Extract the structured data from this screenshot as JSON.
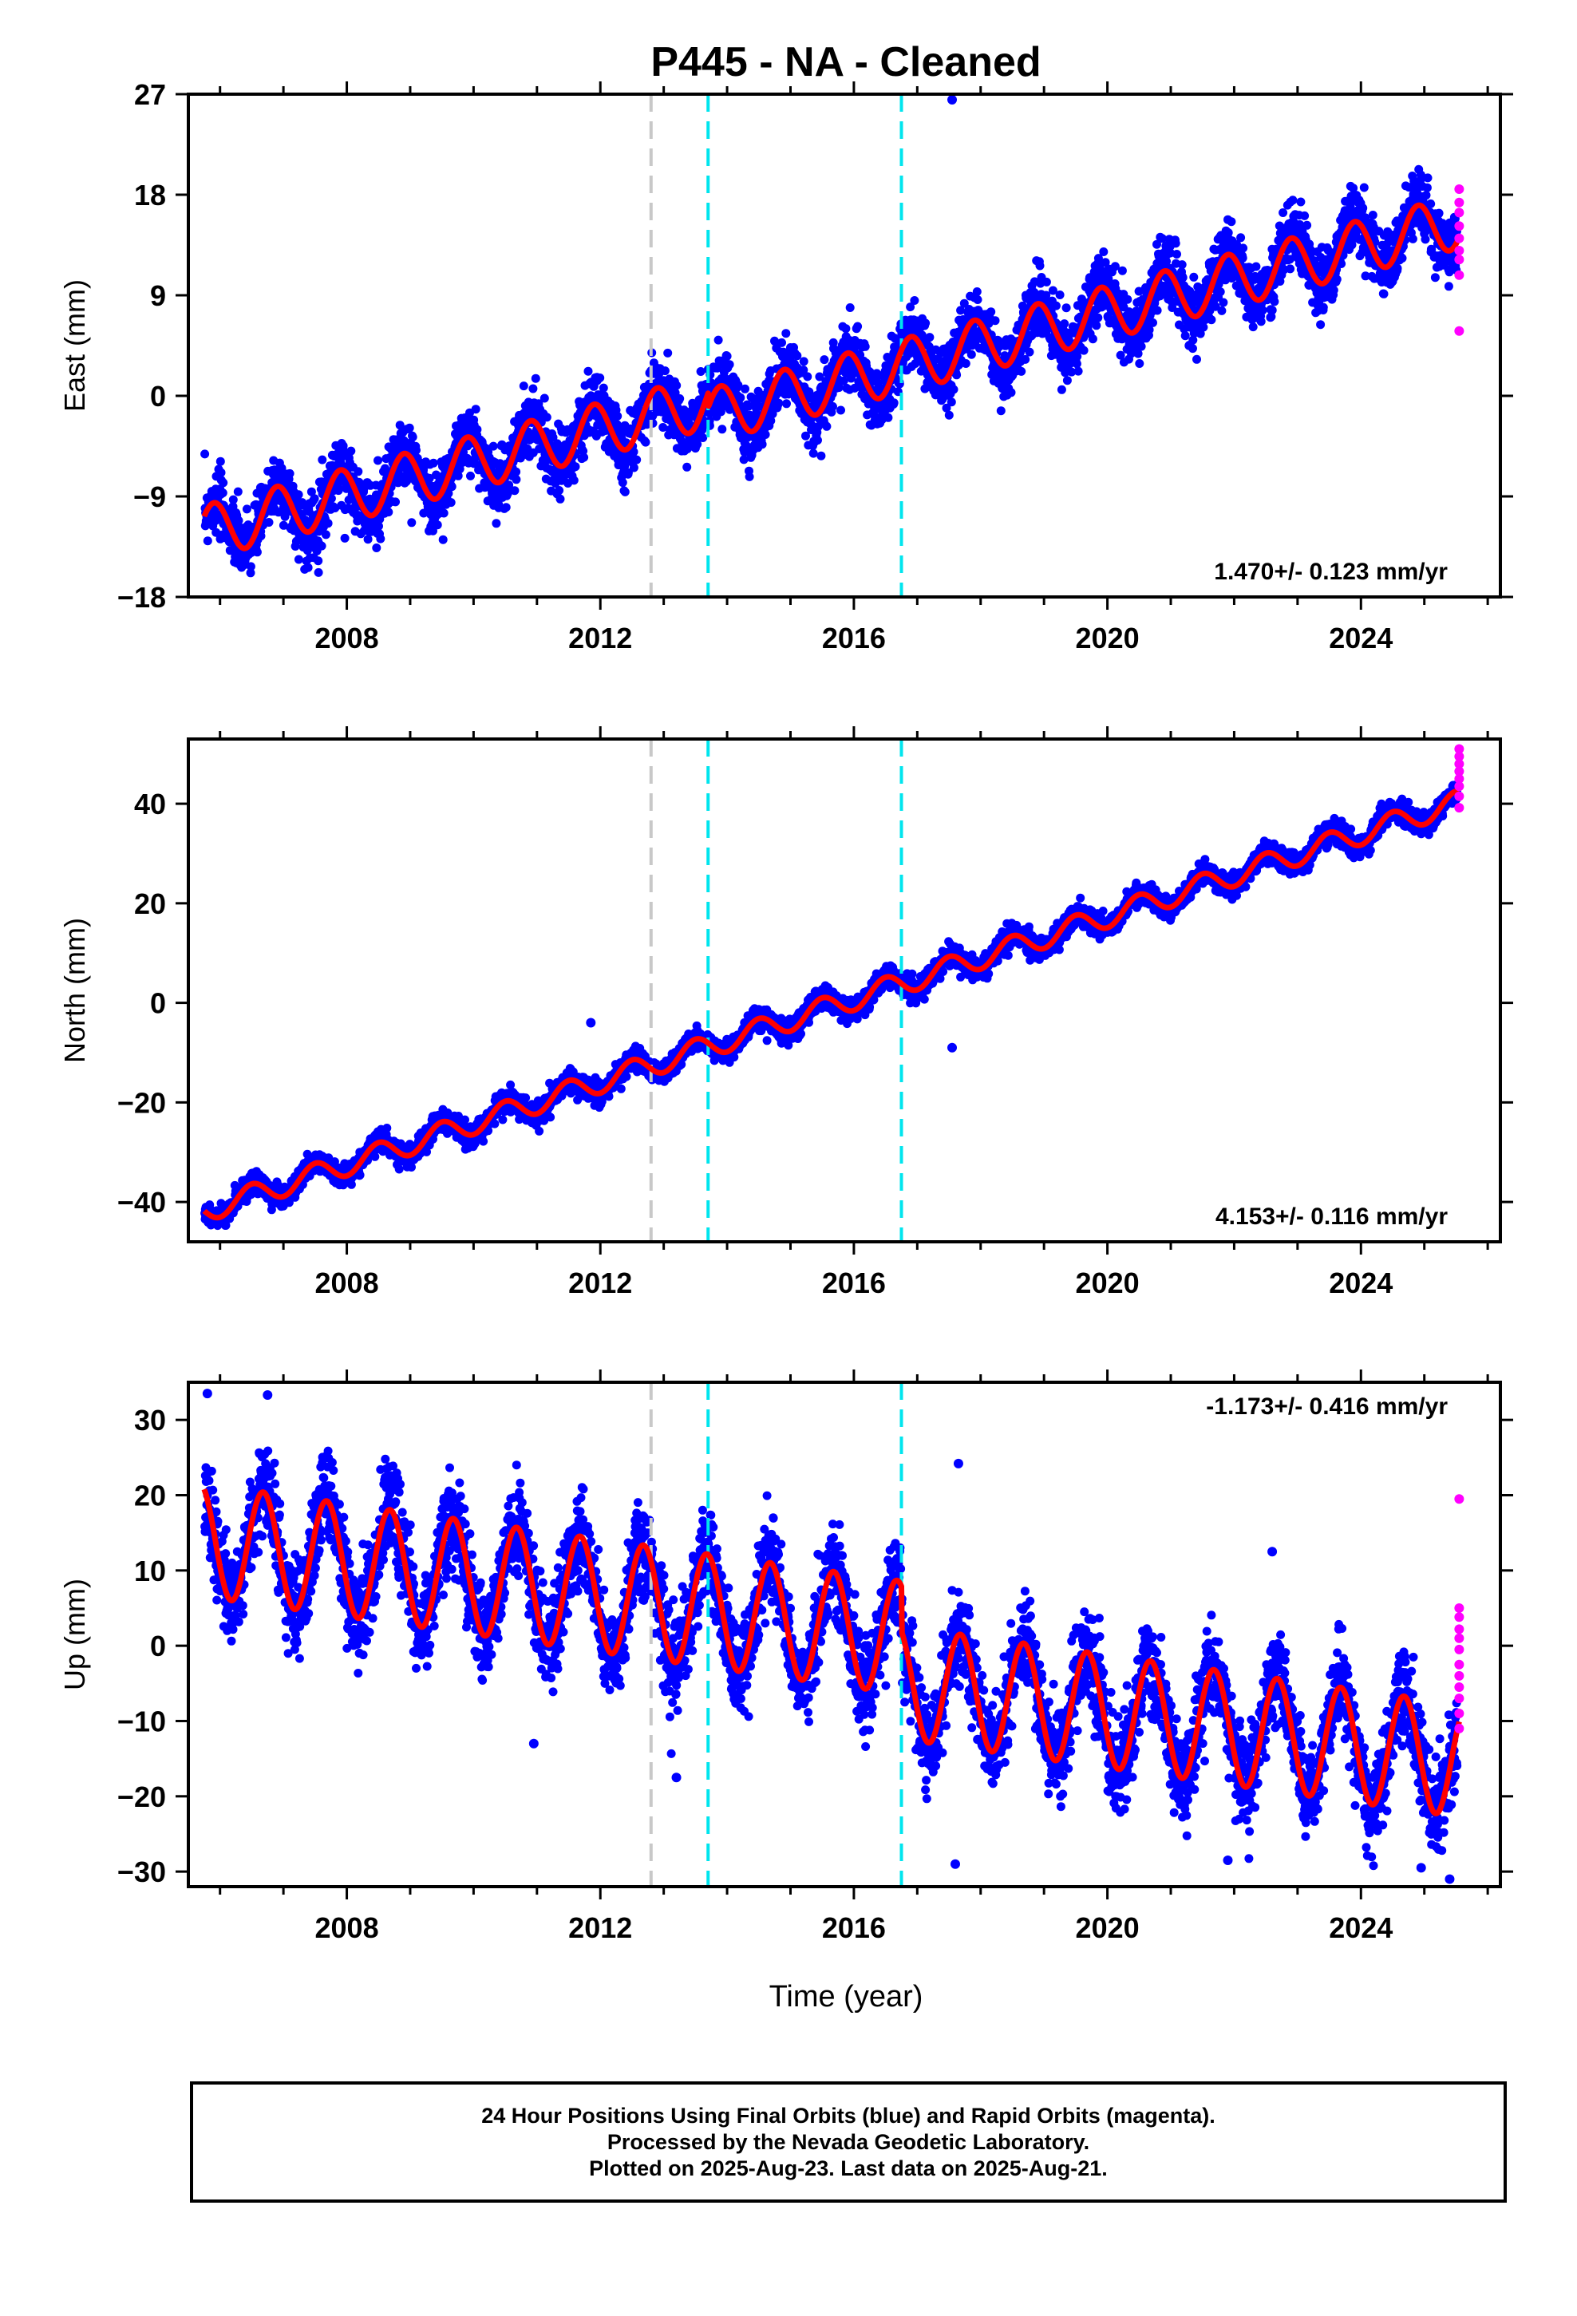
{
  "title": "P445  - NA - Cleaned",
  "x_axis_label": "Time (year)",
  "colors": {
    "final_orbits": "#0000ff",
    "rapid_orbits": "#ff00ff",
    "model_fit": "#ff0000",
    "antenna_change_line": "#c8c8c8",
    "equipment_change_lines": "#00e5ee"
  },
  "footer": {
    "line1": "24 Hour Positions Using Final Orbits (blue) and Rapid Orbits (magenta).",
    "line2": "Processed by the Nevada Geodetic Laboratory.",
    "line3": "Plotted on 2025-Aug-23. Last data on 2025-Aug-21."
  },
  "chart_data": [
    {
      "type": "scatter",
      "ylabel": "East (mm)",
      "xlabel": "",
      "xlim": [
        2005.5,
        2026.2
      ],
      "ylim": [
        -18,
        27
      ],
      "y_ticks": [
        -18,
        -9,
        0,
        9,
        18,
        27
      ],
      "x_ticks": [
        2008,
        2012,
        2016,
        2020,
        2024
      ],
      "rate_label": "1.470+/- 0.123 mm/yr",
      "rate_label_position": "bottom-right",
      "trend": {
        "rate": 1.47,
        "start_year": 2005.75,
        "start_value": -12.2,
        "seasonal_amplitude": 2.4,
        "seasonal_peak_fraction": 0.9,
        "scatter": 1.4
      },
      "offsets": [
        {
          "year": 2013.7,
          "value": -1.3
        }
      ],
      "vertical_lines": [
        {
          "year": 2012.8,
          "type": "antenna"
        },
        {
          "year": 2013.7,
          "type": "equipment"
        },
        {
          "year": 2016.75,
          "type": "equipment"
        }
      ],
      "outliers": [
        {
          "year": 2017.55,
          "value": 26.5
        }
      ],
      "rapid_points": [
        {
          "year": 2025.55,
          "value": 18.5
        },
        {
          "year": 2025.55,
          "value": 17.3
        },
        {
          "year": 2025.55,
          "value": 16.4
        },
        {
          "year": 2025.55,
          "value": 15.2
        },
        {
          "year": 2025.55,
          "value": 14.1
        },
        {
          "year": 2025.55,
          "value": 13.0
        },
        {
          "year": 2025.55,
          "value": 12.2
        },
        {
          "year": 2025.55,
          "value": 10.8
        },
        {
          "year": 2025.55,
          "value": 5.8
        }
      ]
    },
    {
      "type": "scatter",
      "ylabel": "North (mm)",
      "xlabel": "",
      "xlim": [
        2005.5,
        2026.2
      ],
      "ylim": [
        -48,
        53
      ],
      "y_ticks": [
        -40,
        -20,
        0,
        20,
        40
      ],
      "x_ticks": [
        2008,
        2012,
        2016,
        2020,
        2024
      ],
      "rate_label": "4.153+/- 0.116 mm/yr",
      "rate_label_position": "bottom-right",
      "trend": {
        "rate": 4.153,
        "start_year": 2005.75,
        "start_value": -41.8,
        "seasonal_amplitude": 2.3,
        "seasonal_peak_fraction": 0.5,
        "scatter": 1.1
      },
      "offsets": [],
      "vertical_lines": [
        {
          "year": 2012.8,
          "type": "antenna"
        },
        {
          "year": 2013.7,
          "type": "equipment"
        },
        {
          "year": 2016.75,
          "type": "equipment"
        }
      ],
      "outliers": [
        {
          "year": 2017.55,
          "value": -9
        },
        {
          "year": 2011.85,
          "value": -4
        }
      ],
      "rapid_points": [
        {
          "year": 2025.55,
          "value": 51
        },
        {
          "year": 2025.55,
          "value": 49.5
        },
        {
          "year": 2025.55,
          "value": 48
        },
        {
          "year": 2025.55,
          "value": 46.5
        },
        {
          "year": 2025.55,
          "value": 45
        },
        {
          "year": 2025.55,
          "value": 43.5
        },
        {
          "year": 2025.55,
          "value": 41.5
        },
        {
          "year": 2025.55,
          "value": 39.2
        }
      ]
    },
    {
      "type": "scatter",
      "ylabel": "Up (mm)",
      "xlabel": "Time (year)",
      "xlim": [
        2005.5,
        2026.2
      ],
      "ylim": [
        -32,
        35
      ],
      "y_ticks": [
        -30,
        -20,
        -10,
        0,
        10,
        20,
        30
      ],
      "x_ticks": [
        2008,
        2012,
        2016,
        2020,
        2024
      ],
      "rate_label": "-1.173+/- 0.416 mm/yr",
      "rate_label_position": "top-right",
      "trend": {
        "rate": -1.173,
        "start_year": 2005.75,
        "start_value": 14,
        "seasonal_amplitude": 7.5,
        "seasonal_peak_fraction": 0.68,
        "scatter": 3.0
      },
      "offsets": [
        {
          "year": 2016.75,
          "value": -6.0
        }
      ],
      "vertical_lines": [
        {
          "year": 2012.8,
          "type": "antenna"
        },
        {
          "year": 2013.7,
          "type": "equipment"
        },
        {
          "year": 2016.75,
          "type": "equipment"
        }
      ],
      "outliers": [
        {
          "year": 2005.8,
          "value": 33.5
        },
        {
          "year": 2006.75,
          "value": 33.3
        },
        {
          "year": 2013.2,
          "value": -17.5
        },
        {
          "year": 2010.95,
          "value": -13
        },
        {
          "year": 2017.65,
          "value": 24.2
        },
        {
          "year": 2017.6,
          "value": -29
        },
        {
          "year": 2022.6,
          "value": 12.5
        },
        {
          "year": 2021.9,
          "value": -28.5
        },
        {
          "year": 2024.95,
          "value": -29.5
        },
        {
          "year": 2025.4,
          "value": -31
        }
      ],
      "rapid_points": [
        {
          "year": 2025.55,
          "value": 19.5
        },
        {
          "year": 2025.55,
          "value": 5
        },
        {
          "year": 2025.55,
          "value": 3.8
        },
        {
          "year": 2025.55,
          "value": 2.2
        },
        {
          "year": 2025.55,
          "value": 1
        },
        {
          "year": 2025.55,
          "value": -0.5
        },
        {
          "year": 2025.55,
          "value": -2.5
        },
        {
          "year": 2025.55,
          "value": -4
        },
        {
          "year": 2025.55,
          "value": -5.5
        },
        {
          "year": 2025.55,
          "value": -7
        },
        {
          "year": 2025.55,
          "value": -9
        },
        {
          "year": 2025.55,
          "value": -11
        }
      ]
    }
  ]
}
